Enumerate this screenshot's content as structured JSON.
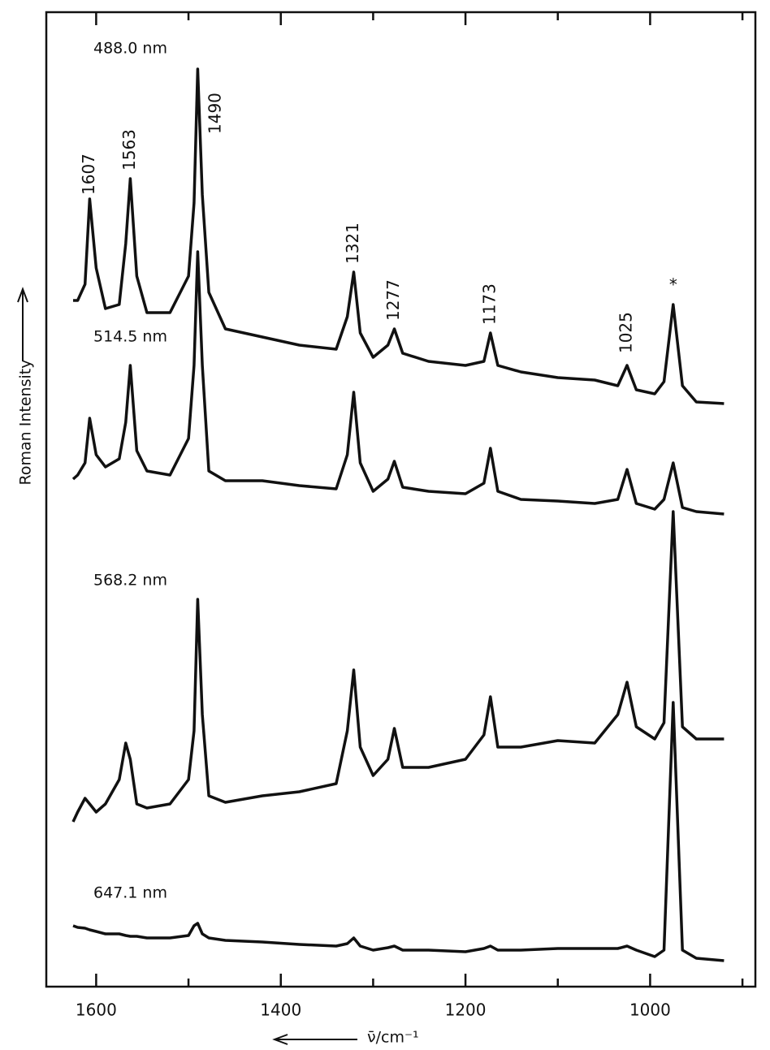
{
  "chart_data": {
    "type": "line",
    "xlabel": "ν̄/cm⁻¹",
    "ylabel": "Roman Intensity",
    "xlim": [
      1654,
      886
    ],
    "ylim": [
      0,
      120
    ],
    "xticks": [
      1600,
      1400,
      1200,
      1000
    ],
    "xminorticks": [
      1500,
      1300,
      1100,
      900
    ],
    "x": [
      1625,
      1620,
      1612,
      1607,
      1600,
      1590,
      1575,
      1568,
      1563,
      1556,
      1545,
      1520,
      1500,
      1494,
      1490,
      1485,
      1478,
      1460,
      1420,
      1380,
      1340,
      1328,
      1321,
      1314,
      1300,
      1284,
      1277,
      1268,
      1240,
      1200,
      1180,
      1173,
      1165,
      1140,
      1100,
      1060,
      1035,
      1025,
      1015,
      995,
      985,
      975,
      965,
      950,
      920
    ],
    "series": [
      {
        "name": "488.0 nm",
        "color": "#111111",
        "values": [
          84.5,
          84.5,
          86.5,
          97,
          88.5,
          83.5,
          84,
          91.5,
          99.5,
          87.5,
          83,
          83,
          87.5,
          96.5,
          113,
          97.5,
          85.5,
          81,
          80,
          79,
          78.5,
          82.5,
          88,
          80.5,
          77.5,
          79,
          81,
          78,
          77,
          76.5,
          77,
          80.5,
          76.5,
          75.7,
          75,
          74.7,
          74,
          76.5,
          73.5,
          73,
          74.5,
          84,
          74,
          72,
          71.8
        ]
      },
      {
        "name": "514.5 nm",
        "color": "#111111",
        "values": [
          62.5,
          63,
          64.5,
          70,
          65.5,
          64,
          65,
          69.5,
          76.5,
          66,
          63.5,
          63,
          67.5,
          76.5,
          90.5,
          76.5,
          63.5,
          62.3,
          62.3,
          61.7,
          61.3,
          65.5,
          73.2,
          64.5,
          61,
          62.5,
          64.7,
          61.5,
          61,
          60.7,
          62,
          66.3,
          61,
          60,
          59.8,
          59.5,
          60,
          63.7,
          59.5,
          58.8,
          60,
          64.5,
          59,
          58.5,
          58.2
        ]
      },
      {
        "name": "568.2 nm",
        "color": "#111111",
        "values": [
          20.3,
          21.5,
          23.2,
          22.5,
          21.5,
          22.5,
          25.5,
          30,
          28,
          22.5,
          22,
          22.5,
          25.5,
          31.5,
          47.7,
          33.5,
          23.5,
          22.7,
          23.5,
          24,
          25,
          31.5,
          39,
          29.5,
          26,
          28,
          31.8,
          27,
          27,
          28,
          31,
          35.7,
          29.5,
          29.5,
          30.3,
          30,
          33.5,
          37.5,
          32,
          30.5,
          32.5,
          58.5,
          32,
          30.5,
          30.5
        ]
      },
      {
        "name": "647.1 nm",
        "color": "#111111",
        "values": [
          7.5,
          7.3,
          7.2,
          7,
          6.8,
          6.5,
          6.5,
          6.3,
          6.2,
          6.2,
          6,
          6,
          6.3,
          7.5,
          7.8,
          6.5,
          6,
          5.7,
          5.5,
          5.2,
          5,
          5.3,
          6,
          5,
          4.5,
          4.8,
          5,
          4.5,
          4.5,
          4.3,
          4.7,
          5,
          4.5,
          4.5,
          4.7,
          4.7,
          4.7,
          5,
          4.5,
          3.7,
          4.5,
          35,
          4.5,
          3.5,
          3.2
        ]
      }
    ],
    "annotations": [
      {
        "text": "1607",
        "x": 1607,
        "y": 97.5
      },
      {
        "text": "1563",
        "x": 1563,
        "y": 100.5
      },
      {
        "text": "1490",
        "x": 1470,
        "y": 105
      },
      {
        "text": "1321",
        "x": 1321,
        "y": 89
      },
      {
        "text": "1277",
        "x": 1277,
        "y": 82
      },
      {
        "text": "1173",
        "x": 1173,
        "y": 81.5
      },
      {
        "text": "1025",
        "x": 1025,
        "y": 78
      },
      {
        "text": "*",
        "x": 975,
        "y": 86.3
      }
    ]
  }
}
